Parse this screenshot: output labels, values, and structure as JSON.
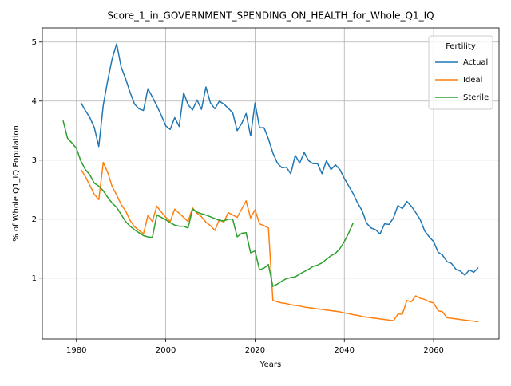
{
  "chart_data": {
    "type": "line",
    "title": "Score_1_in_GOVERNMENT_SPENDING_ON_HEALTH_for_Whole_Q1_IQ",
    "x_label": "Years",
    "y_label": "% of Whole Q1_IQ Population",
    "legend_title": "Fertility",
    "legend_position": "upper right",
    "grid": true,
    "xlim": [
      1972.35,
      2074.65
    ],
    "ylim": [
      -0.03,
      5.24
    ],
    "xticks": [
      1980,
      2000,
      2020,
      2040,
      2060
    ],
    "yticks": [
      1,
      2,
      3,
      4,
      5
    ],
    "x": [
      1977,
      1978,
      1979,
      1980,
      1981,
      1982,
      1983,
      1984,
      1985,
      1986,
      1987,
      1988,
      1989,
      1990,
      1991,
      1992,
      1993,
      1994,
      1995,
      1996,
      1997,
      1998,
      1999,
      2000,
      2001,
      2002,
      2003,
      2004,
      2005,
      2006,
      2007,
      2008,
      2009,
      2010,
      2011,
      2012,
      2013,
      2014,
      2015,
      2016,
      2017,
      2018,
      2019,
      2020,
      2021,
      2022,
      2023,
      2024,
      2025,
      2026,
      2027,
      2028,
      2029,
      2030,
      2031,
      2032,
      2033,
      2034,
      2035,
      2036,
      2037,
      2038,
      2039,
      2040,
      2041,
      2042,
      2043,
      2044,
      2045,
      2046,
      2047,
      2048,
      2049,
      2050,
      2051,
      2052,
      2053,
      2054,
      2055,
      2056,
      2057,
      2058,
      2059,
      2060,
      2061,
      2062,
      2063,
      2064,
      2065,
      2066,
      2067,
      2068,
      2069,
      2070
    ],
    "series": [
      {
        "name": "Actual",
        "color": "#1f77b4",
        "values": [
          null,
          null,
          null,
          null,
          3.97,
          3.84,
          3.72,
          3.55,
          3.23,
          3.93,
          4.35,
          4.72,
          4.97,
          4.58,
          4.38,
          4.15,
          3.95,
          3.87,
          3.84,
          4.21,
          4.07,
          3.92,
          3.76,
          3.58,
          3.52,
          3.72,
          3.57,
          4.14,
          3.94,
          3.85,
          4.02,
          3.86,
          4.24,
          3.97,
          3.87,
          4.0,
          3.95,
          3.88,
          3.8,
          3.5,
          3.62,
          3.79,
          3.41,
          3.97,
          3.55,
          3.55,
          3.36,
          3.12,
          2.95,
          2.87,
          2.88,
          2.77,
          3.08,
          2.95,
          3.13,
          2.99,
          2.94,
          2.94,
          2.77,
          2.99,
          2.84,
          2.92,
          2.84,
          2.69,
          2.56,
          2.43,
          2.27,
          2.14,
          1.93,
          1.85,
          1.82,
          1.75,
          1.92,
          1.91,
          2.02,
          2.23,
          2.18,
          2.3,
          2.22,
          2.11,
          1.99,
          1.8,
          1.7,
          1.62,
          1.44,
          1.39,
          1.28,
          1.25,
          1.15,
          1.12,
          1.05,
          1.14,
          1.1,
          1.18
        ]
      },
      {
        "name": "Ideal",
        "color": "#ff7f0e",
        "values": [
          null,
          null,
          null,
          null,
          2.84,
          2.72,
          2.57,
          2.42,
          2.33,
          2.96,
          2.79,
          2.55,
          2.41,
          2.25,
          2.14,
          1.98,
          1.87,
          1.81,
          1.75,
          2.06,
          1.96,
          2.22,
          2.12,
          2.03,
          1.96,
          2.17,
          2.1,
          2.03,
          1.96,
          2.19,
          2.1,
          2.04,
          1.95,
          1.89,
          1.81,
          1.99,
          1.95,
          2.11,
          2.07,
          2.03,
          2.17,
          2.31,
          2.02,
          2.16,
          1.92,
          1.89,
          1.85,
          0.62,
          0.6,
          0.58,
          0.57,
          0.55,
          0.54,
          0.53,
          0.51,
          0.5,
          0.49,
          0.48,
          0.47,
          0.46,
          0.45,
          0.44,
          0.43,
          0.41,
          0.4,
          0.38,
          0.37,
          0.35,
          0.34,
          0.33,
          0.32,
          0.31,
          0.3,
          0.29,
          0.28,
          0.39,
          0.39,
          0.62,
          0.6,
          0.7,
          0.66,
          0.64,
          0.6,
          0.58,
          0.45,
          0.43,
          0.33,
          0.32,
          0.31,
          0.3,
          0.29,
          0.28,
          0.27,
          0.26
        ]
      },
      {
        "name": "Sterile",
        "color": "#2ca02c",
        "values": [
          3.67,
          3.37,
          3.29,
          3.2,
          2.98,
          2.84,
          2.75,
          2.61,
          2.56,
          2.48,
          2.37,
          2.27,
          2.2,
          2.08,
          1.96,
          1.88,
          1.82,
          1.77,
          1.72,
          1.7,
          1.69,
          2.07,
          2.03,
          1.99,
          1.94,
          1.9,
          1.88,
          1.88,
          1.85,
          2.17,
          2.12,
          2.09,
          2.07,
          2.04,
          2.01,
          1.98,
          1.97,
          2.0,
          2.0,
          1.7,
          1.76,
          1.77,
          1.43,
          1.46,
          1.14,
          1.17,
          1.23,
          0.86,
          0.9,
          0.95,
          0.99,
          1.01,
          1.02,
          1.07,
          1.11,
          1.15,
          1.2,
          1.22,
          1.26,
          1.32,
          1.38,
          1.42,
          1.5,
          1.62,
          1.77,
          1.94,
          null,
          null,
          null,
          null,
          null,
          null,
          null,
          null,
          null,
          null,
          null,
          null,
          null,
          null,
          null,
          null,
          null,
          null,
          null,
          null,
          null,
          null,
          null,
          null,
          null,
          null,
          null,
          null
        ]
      }
    ]
  }
}
